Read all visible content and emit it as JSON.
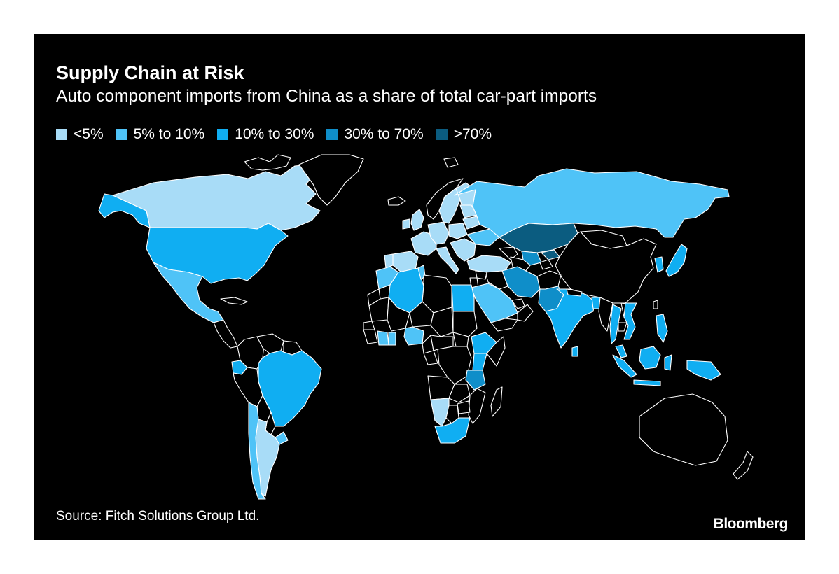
{
  "title": "Supply Chain at Risk",
  "subtitle": "Auto component imports from China as a share of total car-part imports",
  "legend": [
    {
      "label": "<5%",
      "color": "#a8dcf7"
    },
    {
      "label": "5% to 10%",
      "color": "#4fc3f7"
    },
    {
      "label": "10% to 30%",
      "color": "#10aef2"
    },
    {
      "label": "30% to 70%",
      "color": "#0f8ec9"
    },
    {
      "label": ">70%",
      "color": "#0b5c80"
    }
  ],
  "no_data_color": "#000000",
  "source": "Source: Fitch Solutions Group Ltd.",
  "brand": "Bloomberg",
  "regions": [
    {
      "name": "Canada",
      "band": "<5%"
    },
    {
      "name": "United States",
      "band": "10% to 30%"
    },
    {
      "name": "Mexico",
      "band": "5% to 10%"
    },
    {
      "name": "Alaska",
      "band": "10% to 30%"
    },
    {
      "name": "Cuba",
      "band": "no data"
    },
    {
      "name": "Central America",
      "band": "no data"
    },
    {
      "name": "Colombia",
      "band": "no data"
    },
    {
      "name": "Venezuela",
      "band": "no data"
    },
    {
      "name": "Guianas",
      "band": "no data"
    },
    {
      "name": "Ecuador",
      "band": "10% to 30%"
    },
    {
      "name": "Peru",
      "band": "no data"
    },
    {
      "name": "Brazil",
      "band": "10% to 30%"
    },
    {
      "name": "Bolivia",
      "band": "no data"
    },
    {
      "name": "Paraguay",
      "band": "no data"
    },
    {
      "name": "Uruguay",
      "band": "5% to 10%"
    },
    {
      "name": "Argentina",
      "band": "<5%"
    },
    {
      "name": "Chile",
      "band": "5% to 10%"
    },
    {
      "name": "Iceland",
      "band": "no data"
    },
    {
      "name": "United Kingdom",
      "band": "<5%"
    },
    {
      "name": "Ireland",
      "band": "<5%"
    },
    {
      "name": "Norway",
      "band": "no data"
    },
    {
      "name": "Sweden",
      "band": "<5%"
    },
    {
      "name": "Finland",
      "band": "<5%"
    },
    {
      "name": "France",
      "band": "<5%"
    },
    {
      "name": "Spain",
      "band": "<5%"
    },
    {
      "name": "Portugal",
      "band": "<5%"
    },
    {
      "name": "Germany",
      "band": "<5%"
    },
    {
      "name": "Poland",
      "band": "<5%"
    },
    {
      "name": "Italy",
      "band": "<5%"
    },
    {
      "name": "Balkans",
      "band": "<5%"
    },
    {
      "name": "Ukraine",
      "band": "5% to 10%"
    },
    {
      "name": "Belarus",
      "band": "<5%"
    },
    {
      "name": "Baltics",
      "band": "<5%"
    },
    {
      "name": "Turkey",
      "band": "<5%"
    },
    {
      "name": "Caucasus",
      "band": "no data"
    },
    {
      "name": "Russia",
      "band": "5% to 10%"
    },
    {
      "name": "Kazakhstan",
      "band": ">70%"
    },
    {
      "name": "Uzbekistan",
      "band": "30% to 70%"
    },
    {
      "name": "Turkmenistan",
      "band": "no data"
    },
    {
      "name": "Kyrgyzstan",
      "band": ">70%"
    },
    {
      "name": "Tajikistan",
      "band": "no data"
    },
    {
      "name": "Mongolia",
      "band": "no data"
    },
    {
      "name": "China",
      "band": "no data"
    },
    {
      "name": "Korea",
      "band": "10% to 30%"
    },
    {
      "name": "Japan",
      "band": "10% to 30%"
    },
    {
      "name": "Taiwan",
      "band": "no data"
    },
    {
      "name": "Iran",
      "band": "30% to 70%"
    },
    {
      "name": "Iraq",
      "band": "no data"
    },
    {
      "name": "Syria",
      "band": "no data"
    },
    {
      "name": "Levant",
      "band": "no data"
    },
    {
      "name": "Saudi Arabia",
      "band": "5% to 10%"
    },
    {
      "name": "Gulf states",
      "band": "no data"
    },
    {
      "name": "Yemen",
      "band": "no data"
    },
    {
      "name": "Oman",
      "band": "no data"
    },
    {
      "name": "Afghanistan",
      "band": "no data"
    },
    {
      "name": "Pakistan",
      "band": "30% to 70%"
    },
    {
      "name": "India",
      "band": "10% to 30%"
    },
    {
      "name": "Nepal",
      "band": "no data"
    },
    {
      "name": "Bangladesh",
      "band": "10% to 30%"
    },
    {
      "name": "Sri Lanka",
      "band": "10% to 30%"
    },
    {
      "name": "Myanmar",
      "band": "no data"
    },
    {
      "name": "Thailand",
      "band": "10% to 30%"
    },
    {
      "name": "Laos",
      "band": "no data"
    },
    {
      "name": "Vietnam",
      "band": "10% to 30%"
    },
    {
      "name": "Cambodia",
      "band": "no data"
    },
    {
      "name": "Malaysia",
      "band": "10% to 30%"
    },
    {
      "name": "Sumatra",
      "band": "10% to 30%"
    },
    {
      "name": "Borneo",
      "band": "10% to 30%"
    },
    {
      "name": "Java",
      "band": "10% to 30%"
    },
    {
      "name": "Sulawesi",
      "band": "10% to 30%"
    },
    {
      "name": "Philippines",
      "band": "10% to 30%"
    },
    {
      "name": "New Guinea",
      "band": "10% to 30%"
    },
    {
      "name": "Australia",
      "band": "no data"
    },
    {
      "name": "New Zealand",
      "band": "no data"
    },
    {
      "name": "Morocco",
      "band": "5% to 10%"
    },
    {
      "name": "Algeria",
      "band": "10% to 30%"
    },
    {
      "name": "Tunisia",
      "band": "5% to 10%"
    },
    {
      "name": "Libya",
      "band": "no data"
    },
    {
      "name": "Egypt",
      "band": "10% to 30%"
    },
    {
      "name": "Western Sahara",
      "band": "no data"
    },
    {
      "name": "Mauritania",
      "band": "no data"
    },
    {
      "name": "Mali",
      "band": "no data"
    },
    {
      "name": "Niger",
      "band": "no data"
    },
    {
      "name": "Chad",
      "band": "no data"
    },
    {
      "name": "Sudan",
      "band": "no data"
    },
    {
      "name": "South Sudan",
      "band": "no data"
    },
    {
      "name": "Senegal",
      "band": "no data"
    },
    {
      "name": "Guinea",
      "band": "no data"
    },
    {
      "name": "Ivory Coast",
      "band": "5% to 10%"
    },
    {
      "name": "Ghana",
      "band": "5% to 10%"
    },
    {
      "name": "Nigeria",
      "band": "5% to 10%"
    },
    {
      "name": "Cameroon",
      "band": "no data"
    },
    {
      "name": "Central African Republic",
      "band": "no data"
    },
    {
      "name": "Ethiopia",
      "band": "10% to 30%"
    },
    {
      "name": "Somalia",
      "band": "no data"
    },
    {
      "name": "Kenya",
      "band": "10% to 30%"
    },
    {
      "name": "DR Congo",
      "band": "no data"
    },
    {
      "name": "Gabon",
      "band": "no data"
    },
    {
      "name": "Tanzania",
      "band": "30% to 70%"
    },
    {
      "name": "Angola",
      "band": "no data"
    },
    {
      "name": "Zambia",
      "band": "no data"
    },
    {
      "name": "Mozambique",
      "band": "no data"
    },
    {
      "name": "Zimbabwe",
      "band": "no data"
    },
    {
      "name": "Namibia",
      "band": "<5%"
    },
    {
      "name": "Botswana",
      "band": "no data"
    },
    {
      "name": "South Africa",
      "band": "10% to 30%"
    },
    {
      "name": "Madagascar",
      "band": "no data"
    },
    {
      "name": "Greenland",
      "band": "no data"
    },
    {
      "name": "Arctic islands",
      "band": "no data"
    },
    {
      "name": "Svalbard",
      "band": "no data"
    }
  ]
}
